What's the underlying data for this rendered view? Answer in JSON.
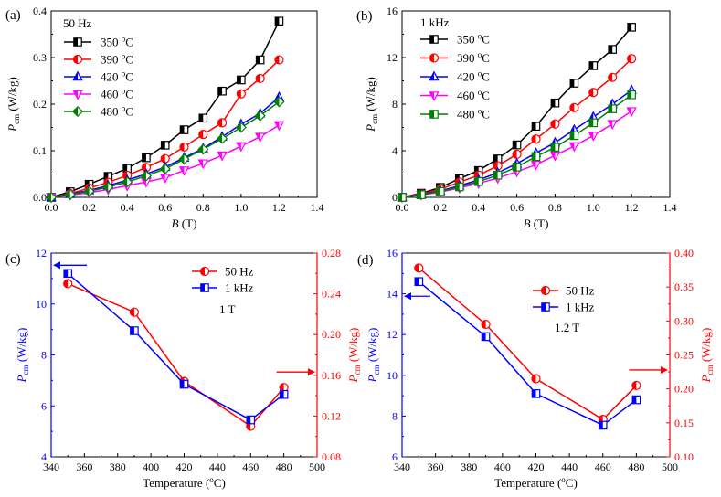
{
  "figure": {
    "description_labels": [
      "(a)",
      "(b)",
      "(c)",
      "(d)"
    ]
  },
  "colors": {
    "black": "#000000",
    "red": "#ff0000",
    "blue": "#0000ff",
    "magenta": "#ff00ff",
    "green": "#008000"
  },
  "chart_data": [
    {
      "id": "a",
      "panel_label": "(a)",
      "type": "line",
      "annotation": "50 Hz",
      "xlabel_var": "B",
      "xlabel_unit": " (T)",
      "ylabel_var": "P",
      "ylabel_sub": "cm",
      "ylabel_unit": " (W/kg)",
      "xlim": [
        0.0,
        1.4
      ],
      "ylim": [
        0.0,
        0.4
      ],
      "xticks": [
        "0.0",
        "0.2",
        "0.4",
        "0.6",
        "0.8",
        "1.0",
        "1.2",
        "1.4"
      ],
      "yticks": [
        "0.0",
        "0.1",
        "0.2",
        "0.3",
        "0.4"
      ],
      "x": [
        0.0,
        0.1,
        0.2,
        0.3,
        0.4,
        0.5,
        0.6,
        0.7,
        0.8,
        0.9,
        1.0,
        1.1,
        1.2
      ],
      "series": [
        {
          "name": "350 °C",
          "temp": "350",
          "color": "#000000",
          "marker": "square",
          "values": [
            0.0,
            0.012,
            0.028,
            0.045,
            0.062,
            0.085,
            0.112,
            0.145,
            0.17,
            0.228,
            0.252,
            0.295,
            0.378
          ]
        },
        {
          "name": "390 °C",
          "temp": "390",
          "color": "#ff0000",
          "marker": "circle",
          "values": [
            0.0,
            0.008,
            0.02,
            0.032,
            0.047,
            0.064,
            0.083,
            0.108,
            0.135,
            0.16,
            0.222,
            0.255,
            0.295
          ]
        },
        {
          "name": "420 °C",
          "temp": "420",
          "color": "#0000ff",
          "marker": "triangle",
          "values": [
            0.0,
            0.007,
            0.015,
            0.025,
            0.037,
            0.05,
            0.065,
            0.085,
            0.105,
            0.13,
            0.157,
            0.18,
            0.215
          ]
        },
        {
          "name": "460 °C",
          "temp": "460",
          "color": "#ff00ff",
          "marker": "triangle-down",
          "values": [
            0.0,
            0.005,
            0.01,
            0.017,
            0.025,
            0.033,
            0.042,
            0.058,
            0.073,
            0.09,
            0.11,
            0.13,
            0.155
          ]
        },
        {
          "name": "480 °C",
          "temp": "480",
          "color": "#008000",
          "marker": "diamond",
          "values": [
            0.0,
            0.006,
            0.013,
            0.022,
            0.033,
            0.046,
            0.061,
            0.082,
            0.103,
            0.126,
            0.15,
            0.175,
            0.205
          ]
        }
      ]
    },
    {
      "id": "b",
      "panel_label": "(b)",
      "type": "line",
      "annotation": "1 kHz",
      "xlabel_var": "B",
      "xlabel_unit": " (T)",
      "ylabel_var": "P",
      "ylabel_sub": "cm",
      "ylabel_unit": " (W/kg)",
      "xlim": [
        0.0,
        1.4
      ],
      "ylim": [
        0,
        16
      ],
      "xticks": [
        "0.0",
        "0.2",
        "0.4",
        "0.6",
        "0.8",
        "1.0",
        "1.2",
        "1.4"
      ],
      "yticks": [
        "0",
        "4",
        "8",
        "12",
        "16"
      ],
      "x": [
        0.0,
        0.1,
        0.2,
        0.3,
        0.4,
        0.5,
        0.6,
        0.7,
        0.8,
        0.9,
        1.0,
        1.1,
        1.2
      ],
      "series": [
        {
          "name": "350 °C",
          "temp": "350",
          "color": "#000000",
          "marker": "square",
          "values": [
            0.0,
            0.35,
            0.85,
            1.6,
            2.3,
            3.3,
            4.5,
            6.1,
            8.1,
            9.8,
            11.3,
            12.7,
            14.6
          ]
        },
        {
          "name": "390 °C",
          "temp": "390",
          "color": "#ff0000",
          "marker": "circle",
          "values": [
            0.0,
            0.3,
            0.7,
            1.3,
            1.9,
            2.7,
            3.7,
            5.0,
            6.3,
            7.7,
            9.0,
            10.3,
            11.9
          ]
        },
        {
          "name": "420 °C",
          "temp": "420",
          "color": "#0000ff",
          "marker": "triangle",
          "values": [
            0.0,
            0.25,
            0.55,
            1.0,
            1.5,
            2.1,
            2.9,
            3.8,
            4.7,
            5.8,
            6.9,
            8.0,
            9.2
          ]
        },
        {
          "name": "460 °C",
          "temp": "460",
          "color": "#ff00ff",
          "marker": "triangle-down",
          "values": [
            0.0,
            0.2,
            0.45,
            0.8,
            1.2,
            1.65,
            2.2,
            2.8,
            3.6,
            4.4,
            5.3,
            6.3,
            7.4
          ]
        },
        {
          "name": "480 °C",
          "temp": "480",
          "color": "#008000",
          "marker": "square-half",
          "values": [
            0.0,
            0.22,
            0.5,
            0.9,
            1.35,
            1.9,
            2.6,
            3.5,
            4.3,
            5.3,
            6.4,
            7.6,
            8.8
          ]
        }
      ]
    },
    {
      "id": "c",
      "panel_label": "(c)",
      "type": "line",
      "dual_axis": true,
      "annotation": "1 T",
      "xlabel": "Temperature (",
      "xlabel_sup": "o",
      "xlabel_end": "C)",
      "ylabel_var": "P",
      "ylabel_sub": "cm",
      "ylabel_unit": " (W/kg)",
      "xlim": [
        340,
        500
      ],
      "xticks": [
        "340",
        "360",
        "380",
        "400",
        "420",
        "440",
        "460",
        "480",
        "500"
      ],
      "y_left": {
        "lim": [
          4,
          12
        ],
        "ticks": [
          "4",
          "6",
          "8",
          "10",
          "12"
        ],
        "color": "#0000ff"
      },
      "y_right": {
        "lim": [
          0.08,
          0.28
        ],
        "ticks": [
          "0.08",
          "0.12",
          "0.16",
          "0.20",
          "0.24",
          "0.28"
        ],
        "color": "#ff0000"
      },
      "x": [
        350,
        390,
        420,
        460,
        480
      ],
      "series": [
        {
          "name": "50 Hz",
          "axis": "right",
          "color": "#ff0000",
          "marker": "circle",
          "values": [
            0.25,
            0.222,
            0.154,
            0.11,
            0.148
          ]
        },
        {
          "name": "1 kHz",
          "axis": "left",
          "color": "#0000ff",
          "marker": "square",
          "values": [
            11.2,
            8.95,
            6.85,
            5.45,
            6.45
          ]
        }
      ]
    },
    {
      "id": "d",
      "panel_label": "(d)",
      "type": "line",
      "dual_axis": true,
      "annotation": "1.2 T",
      "xlabel": "Temperature (",
      "xlabel_sup": "o",
      "xlabel_end": "C)",
      "ylabel_var": "P",
      "ylabel_sub": "cm",
      "ylabel_unit": " (W/kg)",
      "xlim": [
        340,
        500
      ],
      "xticks": [
        "340",
        "360",
        "380",
        "400",
        "420",
        "440",
        "460",
        "480",
        "500"
      ],
      "y_left": {
        "lim": [
          6,
          16
        ],
        "ticks": [
          "6",
          "8",
          "10",
          "12",
          "14",
          "16"
        ],
        "color": "#0000ff"
      },
      "y_right": {
        "lim": [
          0.1,
          0.4
        ],
        "ticks": [
          "0.10",
          "0.15",
          "0.20",
          "0.25",
          "0.30",
          "0.35",
          "0.40"
        ],
        "color": "#ff0000"
      },
      "x": [
        350,
        390,
        420,
        460,
        480
      ],
      "series": [
        {
          "name": "50 Hz",
          "axis": "right",
          "color": "#ff0000",
          "marker": "circle",
          "values": [
            0.378,
            0.295,
            0.215,
            0.155,
            0.205
          ]
        },
        {
          "name": "1 kHz",
          "axis": "left",
          "color": "#0000ff",
          "marker": "square",
          "values": [
            14.6,
            11.9,
            9.1,
            7.55,
            8.8
          ]
        }
      ]
    }
  ]
}
